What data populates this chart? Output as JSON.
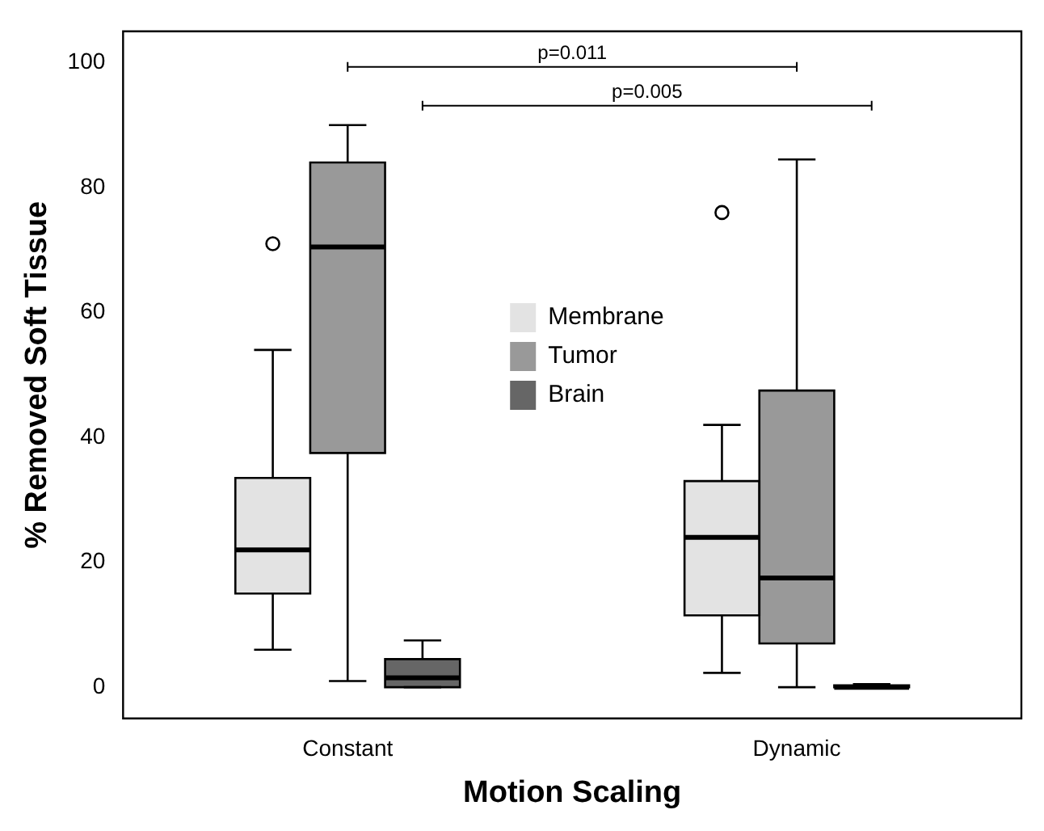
{
  "chart_data": {
    "type": "box",
    "xlabel": "Motion Scaling",
    "ylabel": "% Removed Soft Tissue",
    "categories": [
      "Constant",
      "Dynamic"
    ],
    "ylim": [
      -5,
      105
    ],
    "yticks": [
      0,
      20,
      40,
      60,
      80,
      100
    ],
    "grid": false,
    "legend": "center",
    "series": [
      {
        "name": "Membrane",
        "color": "#e3e3e3",
        "boxes": [
          {
            "low": 6,
            "q1": 15,
            "median": 22,
            "q3": 33.5,
            "high": 54,
            "outliers": [
              71
            ]
          },
          {
            "low": 2.3,
            "q1": 11.5,
            "median": 24,
            "q3": 33,
            "high": 42,
            "outliers": [
              76
            ]
          }
        ]
      },
      {
        "name": "Tumor",
        "color": "#999999",
        "boxes": [
          {
            "low": 1,
            "q1": 37.5,
            "median": 70.5,
            "q3": 84,
            "high": 90
          },
          {
            "low": 0,
            "q1": 7,
            "median": 17.5,
            "q3": 47.5,
            "high": 84.5
          }
        ]
      },
      {
        "name": "Brain",
        "color": "#666666",
        "boxes": [
          {
            "low": 0,
            "q1": 0,
            "median": 1.5,
            "q3": 4.5,
            "high": 7.5
          },
          {
            "low": 0,
            "q1": 0,
            "median": 0,
            "q3": 0.3,
            "high": 0.5
          }
        ]
      }
    ],
    "annotations": [
      "p=0.011",
      "p=0.005"
    ]
  }
}
